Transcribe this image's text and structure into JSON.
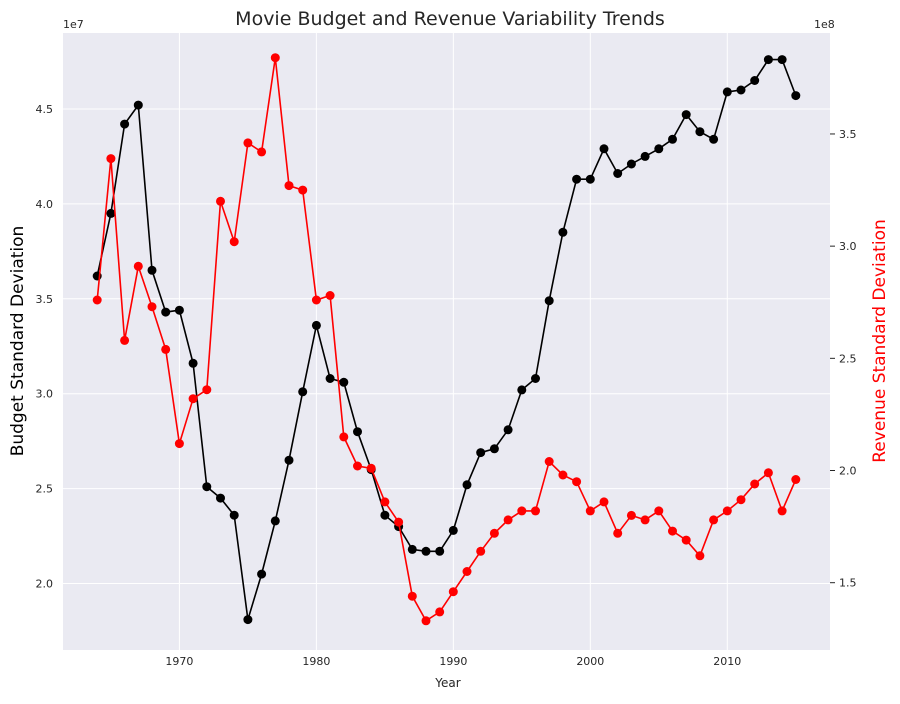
{
  "chart_data": {
    "type": "line",
    "title": "Movie Budget and Revenue Variability Trends",
    "xlabel": "Year",
    "ylabel_left": "Budget Standard Deviation",
    "ylabel_right": "Revenue Standard Deviation",
    "left_exponent": "1e7",
    "right_exponent": "1e8",
    "x_ticks": [
      "1970",
      "1980",
      "1990",
      "2000",
      "2010"
    ],
    "left_ticks": [
      "2.0",
      "2.5",
      "3.0",
      "3.5",
      "4.0",
      "4.5"
    ],
    "right_ticks": [
      "1.5",
      "2.0",
      "2.5",
      "3.0",
      "3.5"
    ],
    "xlim": [
      1961.5,
      2017.5
    ],
    "ylim_left": [
      1.65,
      4.9
    ],
    "ylim_right": [
      1.2,
      3.95
    ],
    "grid": true,
    "background": "#eaeaf2",
    "series": [
      {
        "axis": "left",
        "color": "#000000",
        "x": [
          1964,
          1965,
          1966,
          1967,
          1968,
          1969,
          1970,
          1971,
          1972,
          1973,
          1974,
          1975,
          1976,
          1977,
          1978,
          1979,
          1980,
          1981,
          1982,
          1983,
          1984,
          1985,
          1986,
          1987,
          1988,
          1989,
          1990,
          1991,
          1992,
          1993,
          1994,
          1995,
          1996,
          1997,
          1998,
          1999,
          2000,
          2001,
          2002,
          2003,
          2004,
          2005,
          2006,
          2007,
          2008,
          2009,
          2010,
          2011,
          2012,
          2013,
          2014,
          2015
        ],
        "values": [
          3.62,
          3.95,
          4.42,
          4.52,
          3.65,
          3.43,
          3.44,
          3.16,
          2.51,
          2.45,
          2.36,
          1.81,
          2.05,
          2.33,
          2.65,
          3.01,
          3.36,
          3.08,
          3.06,
          2.8,
          2.6,
          2.36,
          2.3,
          2.18,
          2.17,
          2.17,
          2.28,
          2.52,
          2.69,
          2.71,
          2.81,
          3.02,
          3.08,
          3.49,
          3.85,
          4.13,
          4.13,
          4.29,
          4.16,
          4.21,
          4.25,
          4.29,
          4.34,
          4.47,
          4.38,
          4.34,
          4.59,
          4.6,
          4.65,
          4.76,
          4.76,
          4.57
        ]
      },
      {
        "axis": "right",
        "color": "#ff0000",
        "x": [
          1964,
          1965,
          1966,
          1967,
          1968,
          1969,
          1970,
          1971,
          1972,
          1973,
          1974,
          1975,
          1976,
          1977,
          1978,
          1979,
          1980,
          1981,
          1982,
          1983,
          1984,
          1985,
          1986,
          1987,
          1988,
          1989,
          1990,
          1991,
          1992,
          1993,
          1994,
          1995,
          1996,
          1997,
          1998,
          1999,
          2000,
          2001,
          2002,
          2003,
          2004,
          2005,
          2006,
          2007,
          2008,
          2009,
          2010,
          2011,
          2012,
          2013,
          2014,
          2015
        ],
        "values": [
          2.76,
          3.39,
          2.58,
          2.91,
          2.73,
          2.54,
          2.12,
          2.32,
          2.36,
          3.2,
          3.02,
          3.46,
          3.42,
          3.84,
          3.27,
          3.25,
          2.76,
          2.78,
          2.15,
          2.02,
          2.01,
          1.86,
          1.77,
          1.44,
          1.33,
          1.37,
          1.46,
          1.55,
          1.64,
          1.72,
          1.78,
          1.82,
          1.82,
          2.04,
          1.98,
          1.95,
          1.82,
          1.86,
          1.72,
          1.8,
          1.78,
          1.82,
          1.73,
          1.69,
          1.62,
          1.78,
          1.82,
          1.87,
          1.94,
          1.99,
          1.82,
          1.96
        ]
      }
    ]
  }
}
